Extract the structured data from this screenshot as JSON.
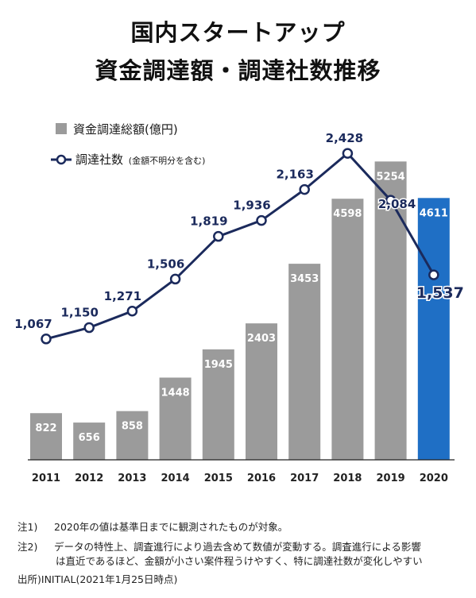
{
  "title_line1": "国内スタートアップ",
  "title_line2": "資金調達額・調達社数推移",
  "chart_data": {
    "type": "bar",
    "categories": [
      "2011",
      "2012",
      "2013",
      "2014",
      "2015",
      "2016",
      "2017",
      "2018",
      "2019",
      "2020"
    ],
    "series": [
      {
        "name": "資金調達総額(億円)",
        "type": "bar",
        "values": [
          822,
          656,
          858,
          1448,
          1945,
          2403,
          3453,
          4598,
          5254,
          4611
        ],
        "labels": [
          "822",
          "656",
          "858",
          "1448",
          "1945",
          "2403",
          "3453",
          "4598",
          "5254",
          "4611"
        ]
      },
      {
        "name": "調達社数",
        "name_suffix": "(金額不明分を含む)",
        "type": "line",
        "values": [
          1067,
          1150,
          1271,
          1506,
          1819,
          1936,
          2163,
          2428,
          2084,
          1537
        ],
        "labels": [
          "1,067",
          "1,150",
          "1,271",
          "1,506",
          "1,819",
          "1,936",
          "2,163",
          "2,428",
          "2,084",
          "1,537"
        ]
      }
    ],
    "colors": {
      "bar": "#9b9b9b",
      "bar_highlight": "#1f6fc5",
      "line": "#1b2a5c"
    },
    "highlight_index": 9,
    "legend_position": "top-left"
  },
  "notes": {
    "note1_prefix": "注1)",
    "note1_text": "2020年の値は基準日までに観測されたものが対象。",
    "note2_prefix": "注2)",
    "note2_line1": "データの特性上、調査進行により過去含めて数値が変動する。調査進行による影響",
    "note2_line2": "は直近であるほど、金額が小さい案件程うけやすく、特に調達社数が変化しやすい",
    "source_prefix": "出所)",
    "source_text": "INITIAL(2021年1月25日時点)"
  }
}
